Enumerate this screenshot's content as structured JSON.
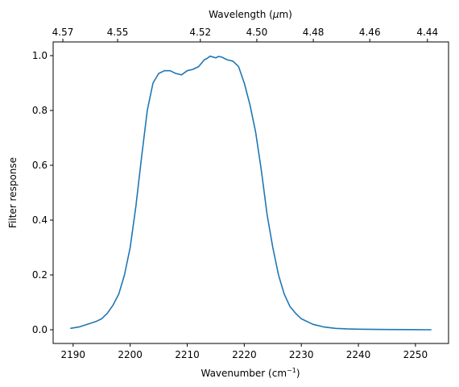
{
  "chart_data": {
    "type": "line",
    "xlabel": "Wavenumber (cm",
    "xlabel_sup": "−1",
    "xlabel_close": ")",
    "ylabel": "Filter response",
    "top_xlabel_prefix": "Wavelength (",
    "top_xlabel_mu": "μ",
    "top_xlabel_suffix": "m)",
    "xlim": [
      2186.5,
      2255.8
    ],
    "ylim": [
      -0.05,
      1.05
    ],
    "grid": false,
    "legend": "none",
    "line_color": "#1f77b4",
    "x_ticks": [
      2190,
      2200,
      2210,
      2220,
      2230,
      2240,
      2250
    ],
    "y_ticks": [
      0.0,
      0.2,
      0.4,
      0.6,
      0.8,
      1.0
    ],
    "y_tick_labels": [
      "0.0",
      "0.2",
      "0.4",
      "0.6",
      "0.8",
      "1.0"
    ],
    "top_ticks": [
      {
        "label": "4.57",
        "x": 2188.2
      },
      {
        "label": "4.55",
        "x": 2197.8
      },
      {
        "label": "4.52",
        "x": 2212.3
      },
      {
        "label": "4.50",
        "x": 2222.2
      },
      {
        "label": "4.48",
        "x": 2232.1
      },
      {
        "label": "4.46",
        "x": 2242.0
      },
      {
        "label": "4.44",
        "x": 2252.1
      }
    ],
    "series": [
      {
        "x": [
          2189.5,
          2191,
          2192.5,
          2194,
          2195,
          2196,
          2197,
          2198,
          2199,
          2200,
          2201,
          2202,
          2203,
          2204,
          2205,
          2206,
          2207,
          2208,
          2209,
          2210,
          2211,
          2212,
          2213,
          2213.5,
          2214,
          2214.5,
          2215,
          2215.5,
          2216,
          2216.5,
          2217,
          2218,
          2219,
          2220,
          2221,
          2222,
          2223,
          2224,
          2225,
          2226,
          2227,
          2228,
          2229,
          2230,
          2232,
          2234,
          2236,
          2238,
          2240,
          2245,
          2252.8
        ],
        "y": [
          0.005,
          0.01,
          0.02,
          0.03,
          0.04,
          0.06,
          0.09,
          0.13,
          0.2,
          0.3,
          0.45,
          0.63,
          0.8,
          0.9,
          0.935,
          0.945,
          0.945,
          0.935,
          0.93,
          0.945,
          0.95,
          0.96,
          0.985,
          0.99,
          0.998,
          0.995,
          0.992,
          0.997,
          0.995,
          0.99,
          0.985,
          0.98,
          0.96,
          0.9,
          0.82,
          0.72,
          0.58,
          0.42,
          0.3,
          0.2,
          0.13,
          0.085,
          0.06,
          0.04,
          0.02,
          0.01,
          0.005,
          0.003,
          0.002,
          0.001,
          0.0
        ]
      }
    ]
  }
}
